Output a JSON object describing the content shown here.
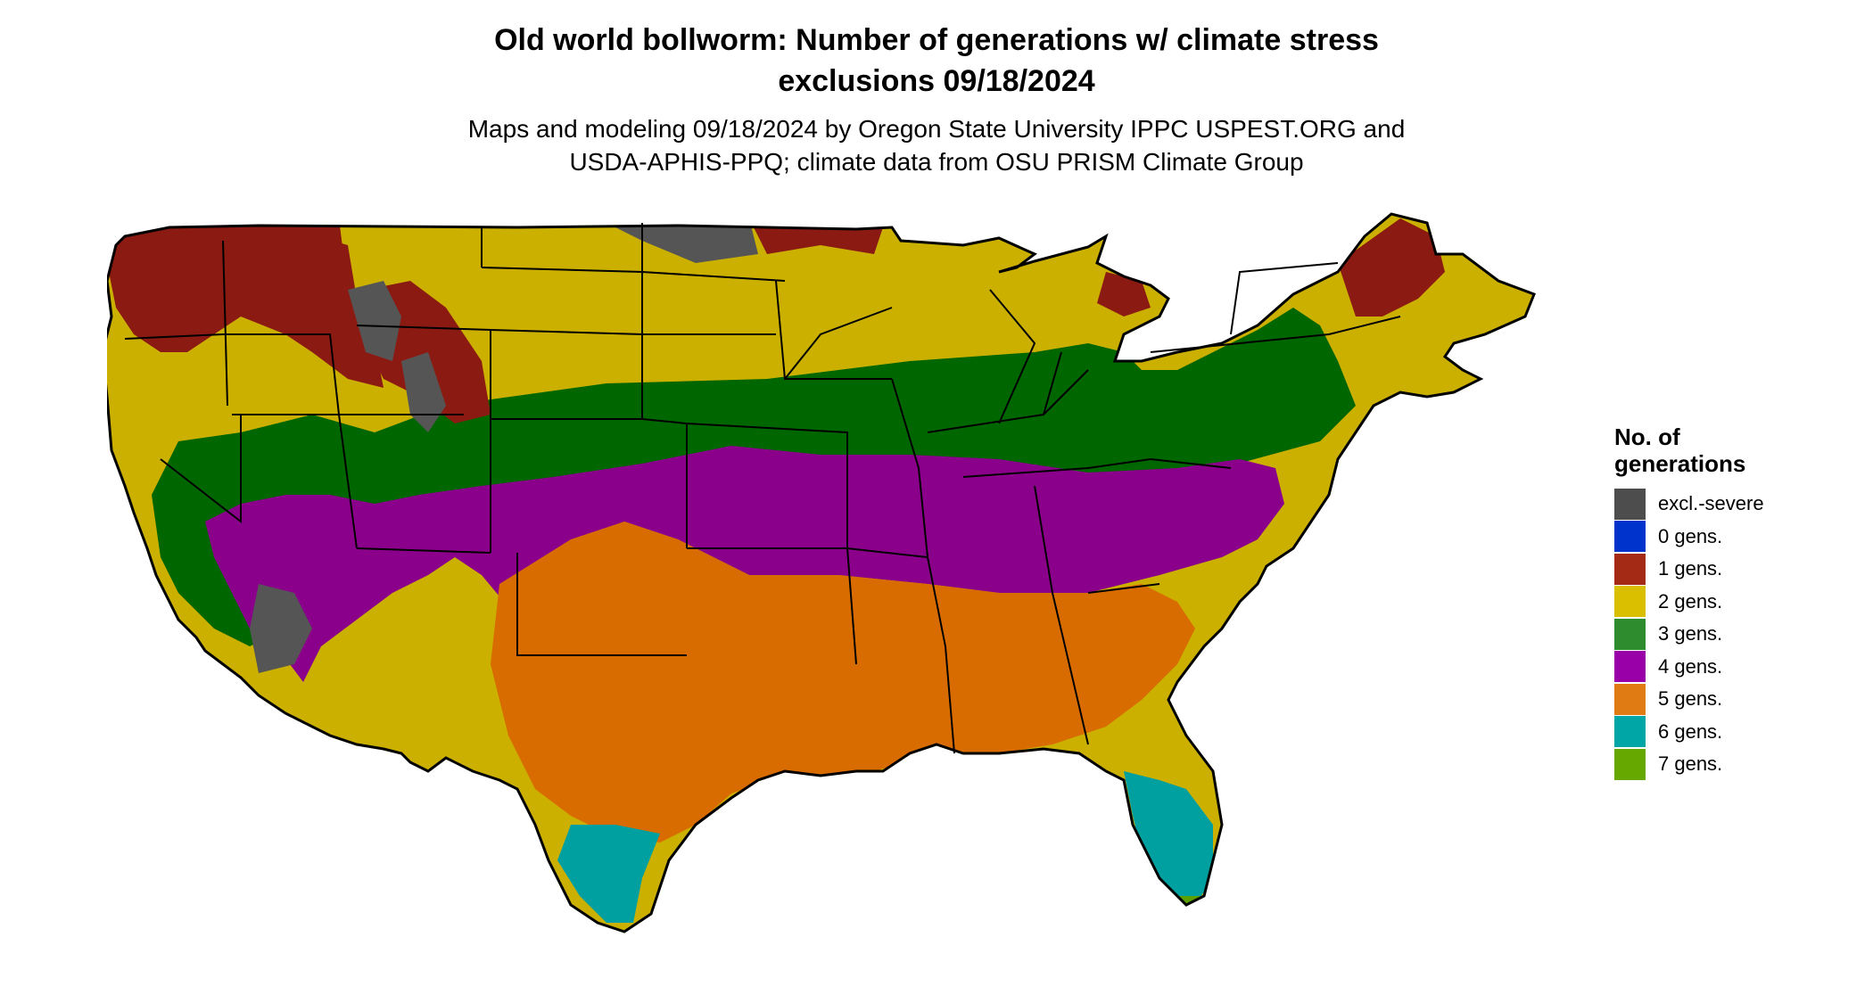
{
  "title_lines": [
    "Old world bollworm: Number of generations w/ climate stress",
    "exclusions 09/18/2024"
  ],
  "subtitle_lines": [
    "Maps and modeling 09/18/2024 by Oregon State University IPPC USPEST.ORG and",
    "USDA-APHIS-PPQ; climate data from OSU PRISM Climate Group"
  ],
  "legend": {
    "title_lines": [
      "No. of",
      "generations"
    ],
    "items": [
      {
        "label": "excl.-severe",
        "color": "#4d4d4d"
      },
      {
        "label": "0 gens.",
        "color": "#0033cc"
      },
      {
        "label": "1 gens.",
        "color": "#a52a16"
      },
      {
        "label": "2 gens.",
        "color": "#d9bf00"
      },
      {
        "label": "3 gens.",
        "color": "#2e8b2e"
      },
      {
        "label": "4 gens.",
        "color": "#9900a8"
      },
      {
        "label": "5 gens.",
        "color": "#e07a12"
      },
      {
        "label": "6 gens.",
        "color": "#00a5a5"
      },
      {
        "label": "7 gens.",
        "color": "#66a800"
      }
    ]
  },
  "map_colors": {
    "excluded": "#555555",
    "gen1": "#8b1a12",
    "gen2": "#ccb000",
    "gen3": "#006600",
    "gen4": "#8b008b",
    "gen5": "#d96c00",
    "gen6": "#00a0a0",
    "gen7": "#5aa000",
    "border": "#000000"
  }
}
